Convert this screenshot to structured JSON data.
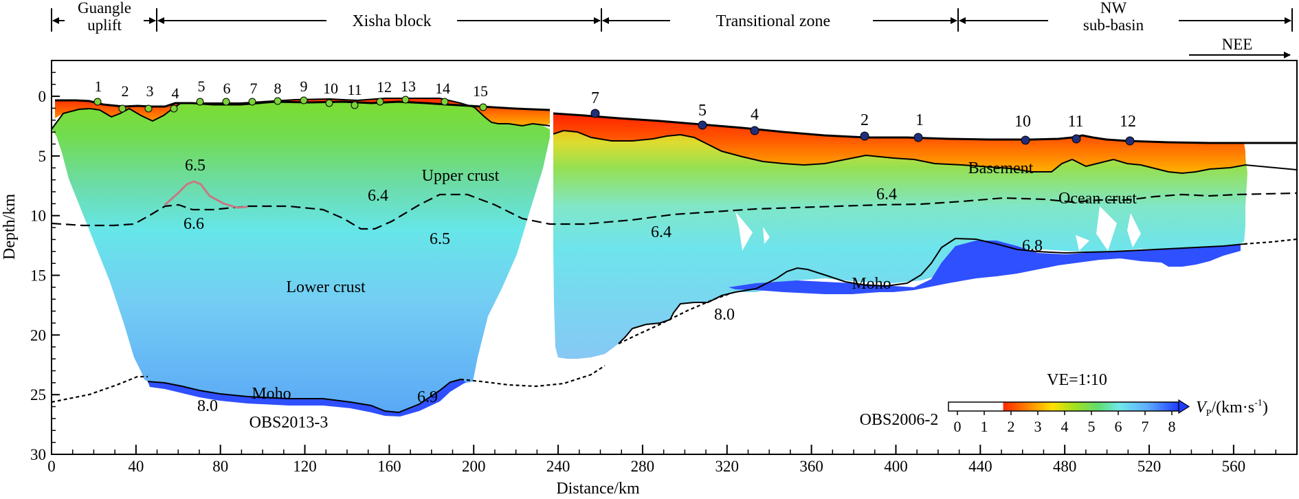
{
  "zones": [
    {
      "id": "guangle",
      "lines": [
        "Guangle",
        "uplift"
      ]
    },
    {
      "id": "xisha",
      "lines": [
        "Xisha block"
      ]
    },
    {
      "id": "transitional",
      "lines": [
        "Transitional zone"
      ]
    },
    {
      "id": "nw",
      "lines": [
        "NW",
        "sub-basin"
      ]
    }
  ],
  "direction_label": "NEE",
  "x_axis": {
    "label": "Distance/km",
    "min": 0,
    "max": 590,
    "ticks": [
      0,
      40,
      80,
      120,
      160,
      200,
      240,
      280,
      320,
      360,
      400,
      440,
      480,
      520,
      560
    ]
  },
  "y_axis": {
    "label": "Depth/km",
    "min": -3,
    "max": 30,
    "ticks": [
      0,
      5,
      10,
      15,
      20,
      25,
      30
    ]
  },
  "stations_2013": {
    "profile_label": "OBS2013-3",
    "labels": [
      "1",
      "2",
      "3",
      "4",
      "5",
      "6",
      "7",
      "8",
      "9",
      "10",
      "11",
      "12",
      "13",
      "14",
      "15"
    ],
    "color": "#7dd23a"
  },
  "stations_2006": {
    "profile_label": "OBS2006-2",
    "labels": [
      "7",
      "5",
      "4",
      "2",
      "1",
      "10",
      "11",
      "12"
    ],
    "color": "#1f2f7a"
  },
  "layer_labels": {
    "upper_crust": "Upper crust",
    "lower_crust": "Lower crust",
    "moho_left": "Moho",
    "moho_right": "Moho",
    "basement": "Basement",
    "ocean_crust": "Ocean crust"
  },
  "velocity_labels": {
    "v65": "6.5",
    "v66": "6.6",
    "v64a": "6.4",
    "v65b": "6.5",
    "v64b": "6.4",
    "v64c": "6.4",
    "v68": "6.8",
    "v80a": "8.0",
    "v80b": "8.0",
    "v69": "6.9"
  },
  "colorbar": {
    "ve": "VE=1∶10",
    "unit_prefix": "V",
    "unit_sub": "P",
    "unit_suffix": "/(km·s",
    "unit_sup": "-1",
    "unit_close": ")",
    "ticks": [
      "0",
      "1",
      "2",
      "3",
      "4",
      "5",
      "6",
      "7",
      "8"
    ],
    "colors": [
      "#ffffff",
      "#ff2a00",
      "#ff8a00",
      "#ffe000",
      "#a8e020",
      "#6cdc60",
      "#70e8e8",
      "#60b0ff",
      "#1e3cff"
    ]
  }
}
